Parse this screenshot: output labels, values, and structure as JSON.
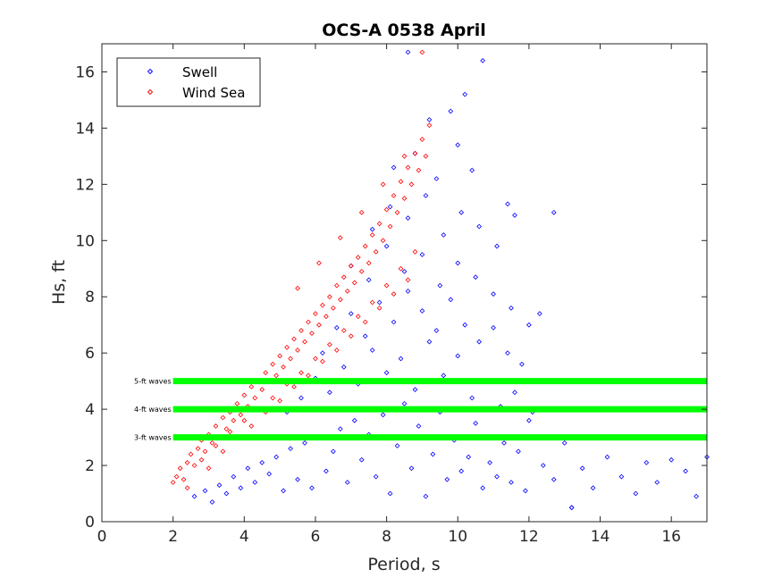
{
  "chart_data": {
    "type": "scatter",
    "title": "OCS-A 0538 April",
    "xlabel": "Period, s",
    "ylabel": "Hs, ft",
    "xlim": [
      0,
      17
    ],
    "ylim": [
      0,
      17
    ],
    "xticks": [
      0,
      2,
      4,
      6,
      8,
      10,
      12,
      14,
      16
    ],
    "yticks": [
      0,
      2,
      4,
      6,
      8,
      10,
      12,
      14,
      16
    ],
    "grid": false,
    "legend_position": "top-left",
    "marker": "diamond-open",
    "series": [
      {
        "name": "Swell",
        "color": "#0000ff",
        "x": [
          2.6,
          2.9,
          3.1,
          3.3,
          3.5,
          3.7,
          3.9,
          4.1,
          4.3,
          4.5,
          4.7,
          4.9,
          5.1,
          5.3,
          5.5,
          5.7,
          5.9,
          6.1,
          6.3,
          6.5,
          6.7,
          6.9,
          7.1,
          7.3,
          7.5,
          7.7,
          7.9,
          8.1,
          8.3,
          8.5,
          8.7,
          8.9,
          9.1,
          9.3,
          9.5,
          9.7,
          9.9,
          10.1,
          10.3,
          10.5,
          10.7,
          10.9,
          11.1,
          11.3,
          11.5,
          11.7,
          11.9,
          12.1,
          12.4,
          12.7,
          13.0,
          13.2,
          13.5,
          13.8,
          14.2,
          14.6,
          15.0,
          15.3,
          15.6,
          16.0,
          16.4,
          16.7,
          17.0,
          5.2,
          5.6,
          6.0,
          6.4,
          6.8,
          7.2,
          7.6,
          8.0,
          8.4,
          8.8,
          9.2,
          9.6,
          10.0,
          10.4,
          10.8,
          11.2,
          11.6,
          12.0,
          6.2,
          6.6,
          7.0,
          7.4,
          7.8,
          8.2,
          8.6,
          9.0,
          9.4,
          9.8,
          10.2,
          10.6,
          11.0,
          11.4,
          11.8,
          7.0,
          7.5,
          8.0,
          8.5,
          9.0,
          9.5,
          10.0,
          10.5,
          11.0,
          11.5,
          12.0,
          12.3,
          7.6,
          8.1,
          8.6,
          9.1,
          9.6,
          10.1,
          10.6,
          11.1,
          11.6,
          8.2,
          8.8,
          9.4,
          10.0,
          10.4,
          11.4,
          12.7,
          9.2,
          9.8,
          10.2,
          10.7,
          8.6,
          13.2
        ],
        "y": [
          0.9,
          1.1,
          0.7,
          1.3,
          1.0,
          1.6,
          1.2,
          1.9,
          1.4,
          2.1,
          1.7,
          2.3,
          1.1,
          2.6,
          1.5,
          2.8,
          1.2,
          3.0,
          1.8,
          2.5,
          3.3,
          1.4,
          3.6,
          2.2,
          3.1,
          1.6,
          3.8,
          1.0,
          2.7,
          4.2,
          1.9,
          3.4,
          0.9,
          2.4,
          3.9,
          1.5,
          2.9,
          1.8,
          2.3,
          3.5,
          1.2,
          2.1,
          1.6,
          2.8,
          1.4,
          2.5,
          1.1,
          3.9,
          2.0,
          1.5,
          2.8,
          0.5,
          1.9,
          1.2,
          2.3,
          1.6,
          1.0,
          2.1,
          1.4,
          2.2,
          1.8,
          0.9,
          2.3,
          3.9,
          4.4,
          5.1,
          4.6,
          5.5,
          4.9,
          6.1,
          5.3,
          5.8,
          4.7,
          6.4,
          5.2,
          5.9,
          4.4,
          5.0,
          4.1,
          4.6,
          3.6,
          6.0,
          6.9,
          7.4,
          6.6,
          7.8,
          7.1,
          8.2,
          7.5,
          6.8,
          7.9,
          7.0,
          6.4,
          6.9,
          6.0,
          5.6,
          9.1,
          8.6,
          9.8,
          8.9,
          9.5,
          8.4,
          9.2,
          8.7,
          8.1,
          7.6,
          7.0,
          7.4,
          10.4,
          11.2,
          10.8,
          11.6,
          10.2,
          11.0,
          10.5,
          9.8,
          10.9,
          12.6,
          13.1,
          12.2,
          13.4,
          12.5,
          11.3,
          11.0,
          14.3,
          14.6,
          15.2,
          16.4,
          16.7,
          0.5
        ]
      },
      {
        "name": "Wind Sea",
        "color": "#ff0000",
        "x": [
          2.0,
          2.1,
          2.2,
          2.3,
          2.4,
          2.5,
          2.6,
          2.7,
          2.8,
          2.9,
          3.0,
          3.1,
          3.2,
          3.3,
          3.4,
          3.5,
          3.6,
          3.7,
          3.8,
          3.9,
          4.0,
          4.1,
          4.2,
          4.3,
          4.4,
          4.5,
          4.6,
          4.7,
          4.8,
          4.9,
          5.0,
          5.1,
          5.2,
          5.3,
          5.4,
          5.5,
          5.6,
          5.7,
          5.8,
          5.9,
          6.0,
          6.1,
          6.2,
          6.3,
          6.4,
          6.5,
          6.6,
          6.7,
          6.8,
          6.9,
          7.0,
          7.1,
          7.2,
          7.3,
          7.4,
          7.5,
          7.6,
          7.7,
          7.8,
          7.9,
          8.0,
          8.1,
          8.2,
          8.3,
          8.4,
          8.5,
          8.6,
          8.7,
          8.8,
          8.9,
          9.0,
          9.1,
          9.2,
          2.4,
          2.8,
          3.2,
          3.6,
          4.0,
          4.4,
          4.8,
          5.2,
          5.6,
          6.0,
          6.4,
          6.8,
          7.2,
          7.6,
          8.0,
          8.4,
          8.8,
          3.0,
          3.4,
          3.8,
          4.2,
          4.6,
          5.0,
          5.4,
          5.8,
          6.2,
          6.6,
          7.0,
          7.4,
          7.8,
          8.2,
          8.6,
          5.5,
          6.1,
          6.7,
          7.3,
          7.9,
          8.5,
          9.0
        ],
        "y": [
          1.4,
          1.6,
          1.9,
          1.5,
          2.1,
          2.4,
          2.0,
          2.6,
          2.9,
          2.5,
          3.1,
          2.8,
          3.4,
          3.0,
          3.7,
          3.3,
          3.9,
          3.6,
          4.2,
          3.8,
          4.5,
          4.1,
          4.8,
          4.4,
          5.0,
          4.7,
          5.3,
          5.0,
          5.6,
          5.2,
          5.9,
          5.5,
          6.2,
          5.8,
          6.5,
          6.1,
          6.8,
          6.4,
          7.1,
          6.7,
          7.4,
          7.0,
          7.7,
          7.3,
          8.0,
          7.6,
          8.4,
          7.9,
          8.7,
          8.2,
          9.1,
          8.5,
          9.4,
          8.9,
          9.8,
          9.2,
          10.2,
          9.6,
          10.6,
          10.0,
          11.1,
          10.5,
          11.6,
          11.0,
          12.1,
          11.5,
          12.6,
          12.0,
          13.1,
          12.5,
          13.6,
          13.0,
          14.1,
          1.2,
          2.2,
          2.7,
          3.2,
          3.6,
          4.0,
          4.4,
          4.9,
          5.3,
          5.8,
          6.3,
          6.8,
          7.3,
          7.8,
          8.4,
          9.0,
          9.6,
          1.9,
          2.5,
          3.0,
          3.4,
          3.9,
          4.3,
          4.8,
          5.2,
          5.7,
          6.1,
          6.6,
          7.1,
          7.6,
          8.1,
          8.6,
          8.3,
          9.2,
          10.1,
          11.0,
          12.0,
          13.0,
          16.7
        ]
      }
    ],
    "reference_lines": [
      {
        "label": "5-ft waves",
        "y": 5,
        "x_start": 2,
        "x_end": 17,
        "color": "#00ff00"
      },
      {
        "label": "4-ft waves",
        "y": 4,
        "x_start": 2,
        "x_end": 17,
        "color": "#00ff00"
      },
      {
        "label": "3-ft waves",
        "y": 3,
        "x_start": 2,
        "x_end": 17,
        "color": "#00ff00"
      }
    ]
  }
}
